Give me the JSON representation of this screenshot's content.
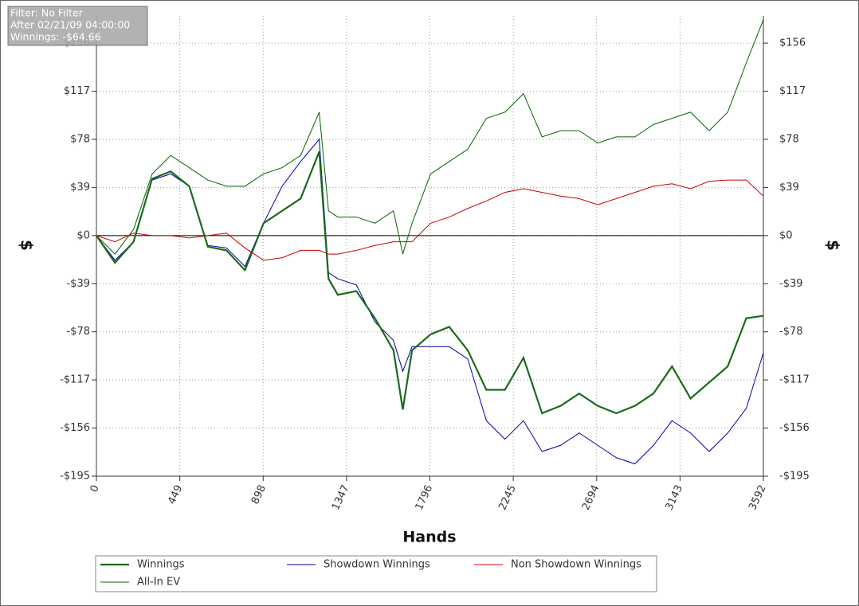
{
  "chart_data": {
    "type": "line",
    "overlay": [
      "Filter: No Filter",
      "After 02/21/09 04:00:00",
      "Winnings: -$64.66"
    ],
    "xlabel": "Hands",
    "ylabel": "$",
    "y2label": "$",
    "x": [
      0,
      100,
      200,
      300,
      400,
      500,
      600,
      700,
      800,
      900,
      1000,
      1100,
      1200,
      1250,
      1300,
      1400,
      1500,
      1600,
      1650,
      1700,
      1800,
      1900,
      2000,
      2100,
      2200,
      2300,
      2400,
      2500,
      2600,
      2700,
      2800,
      2900,
      3000,
      3100,
      3200,
      3300,
      3400,
      3500,
      3592
    ],
    "xlim": [
      0,
      3592
    ],
    "xticks": [
      0,
      449,
      898,
      1347,
      1796,
      2245,
      2694,
      3143,
      3592
    ],
    "ylim": [
      -195,
      178
    ],
    "yticks": [
      {
        "value": 156,
        "label": "$156"
      },
      {
        "value": 117,
        "label": "$117"
      },
      {
        "value": 78,
        "label": "$78"
      },
      {
        "value": 39,
        "label": "$39"
      },
      {
        "value": 0,
        "label": "$0"
      },
      {
        "value": -39,
        "label": "-$39"
      },
      {
        "value": -78,
        "label": "-$78"
      },
      {
        "value": -117,
        "label": "-$117"
      },
      {
        "value": -156,
        "label": "-$156"
      },
      {
        "value": -195,
        "label": "-$195"
      }
    ],
    "grid": true,
    "legend": "bottom",
    "series": [
      {
        "name": "Winnings",
        "color": "#1b6a1b",
        "width": 2.2,
        "values": [
          0,
          -22,
          -5,
          46,
          52,
          40,
          -9,
          -12,
          -28,
          10,
          20,
          30,
          68,
          -35,
          -48,
          -45,
          -67,
          -93,
          -141,
          -93,
          -80,
          -74,
          -93,
          -125,
          -125,
          -99,
          -144,
          -138,
          -128,
          -138,
          -144,
          -138,
          -128,
          -106,
          -132,
          -119,
          -106,
          -67,
          -65
        ]
      },
      {
        "name": "Showdown Winnings",
        "color": "#0000aa",
        "width": 1,
        "values": [
          0,
          -20,
          -5,
          45,
          50,
          40,
          -8,
          -10,
          -25,
          10,
          40,
          60,
          78,
          -30,
          -35,
          -40,
          -70,
          -85,
          -110,
          -90,
          -90,
          -90,
          -100,
          -150,
          -165,
          -150,
          -175,
          -170,
          -160,
          -170,
          -180,
          -185,
          -170,
          -150,
          -160,
          -175,
          -160,
          -140,
          -95
        ]
      },
      {
        "name": "Non Showdown Winnings",
        "color": "#cc0000",
        "width": 1,
        "values": [
          0,
          -5,
          2,
          0,
          0,
          -2,
          0,
          2,
          -10,
          -20,
          -18,
          -12,
          -12,
          -15,
          -15,
          -12,
          -8,
          -5,
          -5,
          -5,
          10,
          15,
          22,
          28,
          35,
          38,
          35,
          32,
          30,
          25,
          30,
          35,
          40,
          42,
          38,
          44,
          45,
          45,
          32
        ]
      },
      {
        "name": "All-In EV",
        "color": "#006400",
        "width": 1,
        "values": [
          0,
          -15,
          5,
          50,
          65,
          55,
          45,
          40,
          40,
          50,
          55,
          65,
          100,
          20,
          15,
          15,
          10,
          20,
          -15,
          10,
          50,
          60,
          70,
          95,
          100,
          115,
          80,
          85,
          85,
          75,
          80,
          80,
          90,
          95,
          100,
          85,
          100,
          140,
          175
        ]
      }
    ]
  }
}
